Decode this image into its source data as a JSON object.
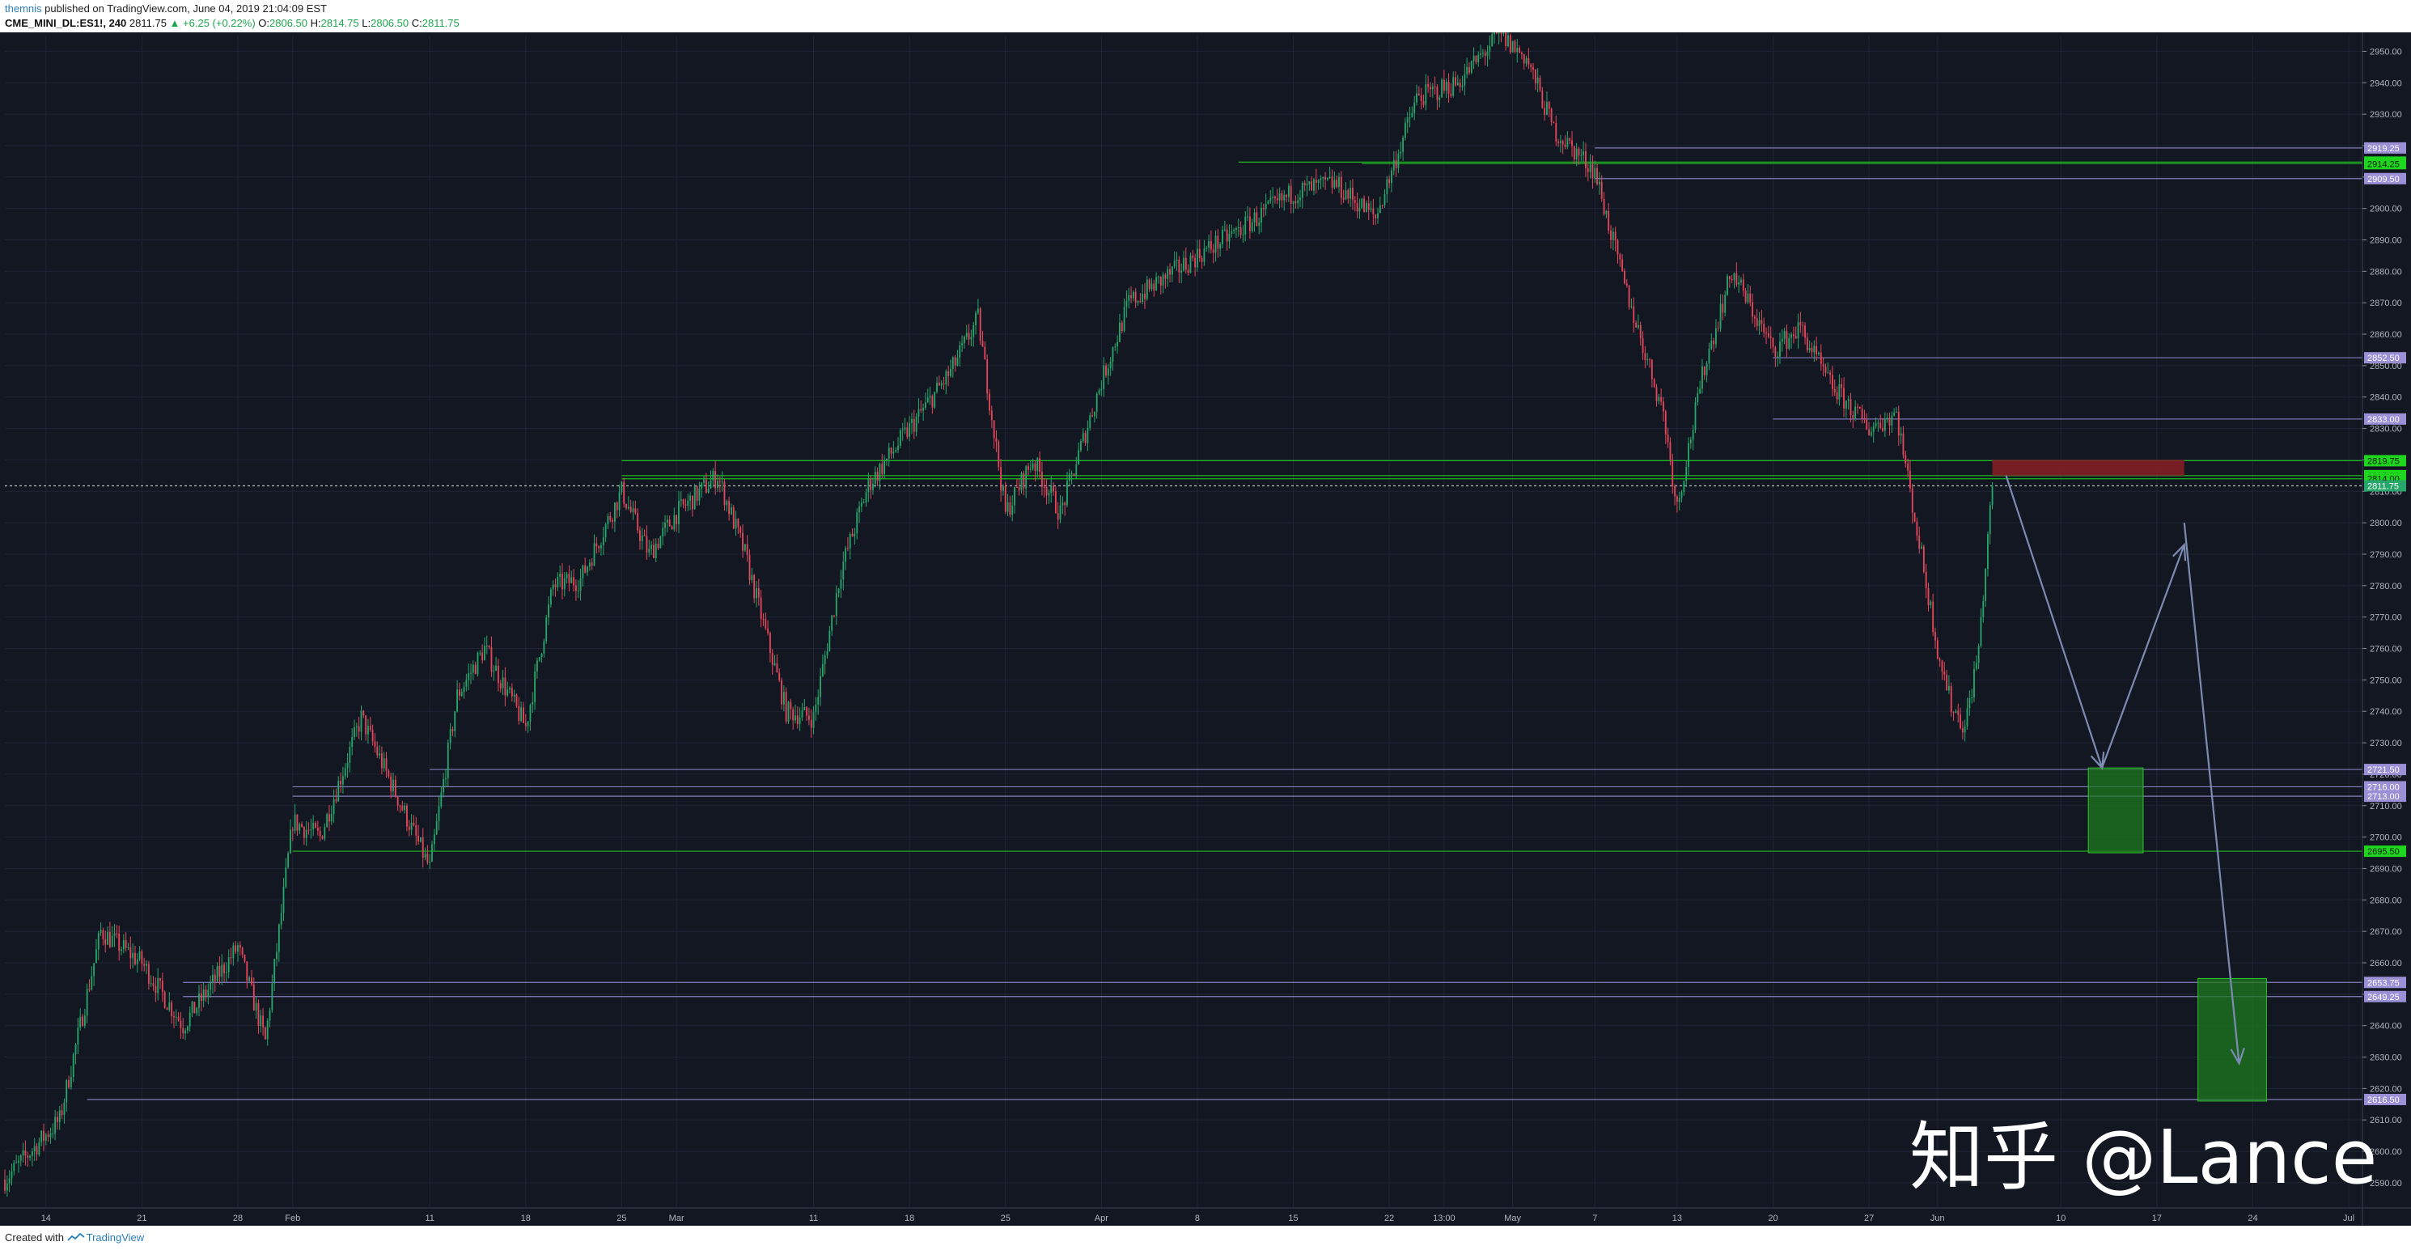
{
  "header": {
    "author": "themnis",
    "published_text": "published on TradingView.com, June 04, 2019 21:04:09 EST",
    "symbol": "CME_MINI_DL:ES1!, 240",
    "last": "2811.75",
    "change": "▲ +6.25 (+0.22%)",
    "o_label": "O:",
    "o_val": "2806.50",
    "h_label": "H:",
    "h_val": "2814.75",
    "l_label": "L:",
    "l_val": "2806.50",
    "c_label": "C:",
    "c_val": "2811.75"
  },
  "footer": {
    "created_with": "Created with",
    "brand": "TradingView"
  },
  "watermark": "知乎 @Lance",
  "colors": {
    "background": "#131722",
    "grid": "#1f2535",
    "up": "#26a66a",
    "down": "#e5475a",
    "support_green": "#1fd61f",
    "level_purple": "#9b8fd6",
    "arrow": "#7d8bb3"
  },
  "chart_data": {
    "type": "candlestick",
    "symbol": "CME_MINI_DL:ES1!",
    "interval": "240",
    "ylim": [
      2582,
      2955
    ],
    "y_ticks": [
      2590,
      2600,
      2610,
      2620,
      2630,
      2640,
      2650,
      2660,
      2670,
      2680,
      2690,
      2700,
      2710,
      2720,
      2730,
      2740,
      2750,
      2760,
      2770,
      2780,
      2790,
      2800,
      2810,
      2820,
      2830,
      2840,
      2850,
      2860,
      2870,
      2880,
      2890,
      2900,
      2910,
      2920,
      2930,
      2940,
      2950
    ],
    "x_ticks": [
      "14",
      "21",
      "28",
      "Feb",
      "11",
      "18",
      "25",
      "Mar",
      "11",
      "18",
      "25",
      "Apr",
      "8",
      "15",
      "22",
      "13:00",
      "May",
      "7",
      "13",
      "20",
      "27",
      "Jun",
      "10",
      "17",
      "24",
      "Jul"
    ],
    "x_range": [
      "2019-01-11",
      "2019-07-02"
    ],
    "x_tick_dates": [
      "2019-01-14",
      "2019-01-21",
      "2019-01-28",
      "2019-02-01",
      "2019-02-11",
      "2019-02-18",
      "2019-02-25",
      "2019-03-01",
      "2019-03-11",
      "2019-03-18",
      "2019-03-25",
      "2019-04-01",
      "2019-04-08",
      "2019-04-15",
      "2019-04-22",
      "2019-04-26",
      "2019-05-01",
      "2019-05-07",
      "2019-05-13",
      "2019-05-20",
      "2019-05-27",
      "2019-06-01",
      "2019-06-10",
      "2019-06-17",
      "2019-06-24",
      "2019-07-01"
    ],
    "price_path": [
      [
        "2019-01-11",
        2591
      ],
      [
        "2019-01-15",
        2610
      ],
      [
        "2019-01-18",
        2670
      ],
      [
        "2019-01-21",
        2660
      ],
      [
        "2019-01-24",
        2640
      ],
      [
        "2019-01-28",
        2665
      ],
      [
        "2019-01-30",
        2635
      ],
      [
        "2019-02-01",
        2705
      ],
      [
        "2019-02-03",
        2700
      ],
      [
        "2019-02-06",
        2738
      ],
      [
        "2019-02-11",
        2690
      ],
      [
        "2019-02-13",
        2745
      ],
      [
        "2019-02-15",
        2760
      ],
      [
        "2019-02-18",
        2735
      ],
      [
        "2019-02-20",
        2780
      ],
      [
        "2019-02-22",
        2782
      ],
      [
        "2019-02-25",
        2810
      ],
      [
        "2019-02-27",
        2790
      ],
      [
        "2019-03-01",
        2803
      ],
      [
        "2019-03-04",
        2815
      ],
      [
        "2019-03-06",
        2790
      ],
      [
        "2019-03-09",
        2740
      ],
      [
        "2019-03-11",
        2738
      ],
      [
        "2019-03-13",
        2785
      ],
      [
        "2019-03-15",
        2812
      ],
      [
        "2019-03-18",
        2830
      ],
      [
        "2019-03-21",
        2848
      ],
      [
        "2019-03-23",
        2865
      ],
      [
        "2019-03-25",
        2803
      ],
      [
        "2019-03-27",
        2820
      ],
      [
        "2019-03-29",
        2803
      ],
      [
        "2019-04-01",
        2845
      ],
      [
        "2019-04-03",
        2870
      ],
      [
        "2019-04-08",
        2885
      ],
      [
        "2019-04-11",
        2893
      ],
      [
        "2019-04-15",
        2905
      ],
      [
        "2019-04-18",
        2908
      ],
      [
        "2019-04-21",
        2897
      ],
      [
        "2019-04-24",
        2935
      ],
      [
        "2019-04-27",
        2940
      ],
      [
        "2019-04-30",
        2955
      ],
      [
        "2019-05-02",
        2948
      ],
      [
        "2019-05-04",
        2925
      ],
      [
        "2019-05-07",
        2912
      ],
      [
        "2019-05-09",
        2878
      ],
      [
        "2019-05-12",
        2835
      ],
      [
        "2019-05-13",
        2805
      ],
      [
        "2019-05-15",
        2850
      ],
      [
        "2019-05-17",
        2880
      ],
      [
        "2019-05-20",
        2855
      ],
      [
        "2019-05-22",
        2862
      ],
      [
        "2019-05-24",
        2845
      ],
      [
        "2019-05-27",
        2830
      ],
      [
        "2019-05-29",
        2835
      ],
      [
        "2019-05-30",
        2810
      ],
      [
        "2019-06-01",
        2760
      ],
      [
        "2019-06-02",
        2742
      ],
      [
        "2019-06-03",
        2735
      ],
      [
        "2019-06-04",
        2760
      ],
      [
        "2019-06-05",
        2811.75
      ]
    ],
    "horizontal_levels": [
      {
        "price": 2919.25,
        "label": "2919.25",
        "color": "purple",
        "from": "2019-05-07"
      },
      {
        "price": 2914.75,
        "label": "2914.75",
        "color": "green",
        "from": "2019-04-11"
      },
      {
        "price": 2914.25,
        "label": "2914.25",
        "color": "green",
        "from": "2019-04-20"
      },
      {
        "price": 2909.5,
        "label": "2909.50",
        "color": "purple",
        "from": "2019-05-07"
      },
      {
        "price": 2852.5,
        "label": "2852.50",
        "color": "purple",
        "from": "2019-05-20"
      },
      {
        "price": 2833.0,
        "label": "2833.00",
        "color": "purple",
        "from": "2019-05-20"
      },
      {
        "price": 2819.75,
        "label": "2819.75",
        "color": "green",
        "from": "2019-02-25"
      },
      {
        "price": 2815.0,
        "label": "2815.00",
        "color": "green",
        "from": "2019-02-25"
      },
      {
        "price": 2814.0,
        "label": "2814.00",
        "color": "green",
        "from": "2019-02-25"
      },
      {
        "price": 2811.75,
        "label": "2811.75",
        "color": "last",
        "from": "2019-01-11"
      },
      {
        "price": 2721.5,
        "label": "2721.50",
        "color": "purple",
        "from": "2019-02-11"
      },
      {
        "price": 2716.0,
        "label": "2716.00",
        "color": "purple",
        "from": "2019-02-01"
      },
      {
        "price": 2713.0,
        "label": "2713.00",
        "color": "purple",
        "from": "2019-02-01"
      },
      {
        "price": 2695.5,
        "label": "2695.50",
        "color": "green",
        "from": "2019-02-01"
      },
      {
        "price": 2653.75,
        "label": "2653.75",
        "color": "purple",
        "from": "2019-01-24"
      },
      {
        "price": 2649.25,
        "label": "2649.25",
        "color": "purple",
        "from": "2019-01-24"
      },
      {
        "price": 2616.5,
        "label": "2616.50",
        "color": "purple",
        "from": "2019-01-17"
      }
    ],
    "zones": [
      {
        "type": "resistance",
        "color": "red",
        "from": "2019-06-05",
        "to": "2019-06-19",
        "price_top": 2820,
        "price_bottom": 2815
      },
      {
        "type": "target",
        "color": "green",
        "from": "2019-06-12",
        "to": "2019-06-16",
        "price_top": 2722,
        "price_bottom": 2695
      },
      {
        "type": "target",
        "color": "green",
        "from": "2019-06-20",
        "to": "2019-06-25",
        "price_top": 2655,
        "price_bottom": 2616
      }
    ],
    "projection_arrows": [
      {
        "from": [
          "2019-06-06",
          2815
        ],
        "to": [
          "2019-06-13",
          2722
        ]
      },
      {
        "from": [
          "2019-06-13",
          2722
        ],
        "to": [
          "2019-06-19",
          2793
        ]
      },
      {
        "from": [
          "2019-06-19",
          2800
        ],
        "to": [
          "2019-06-23",
          2628
        ]
      }
    ]
  }
}
